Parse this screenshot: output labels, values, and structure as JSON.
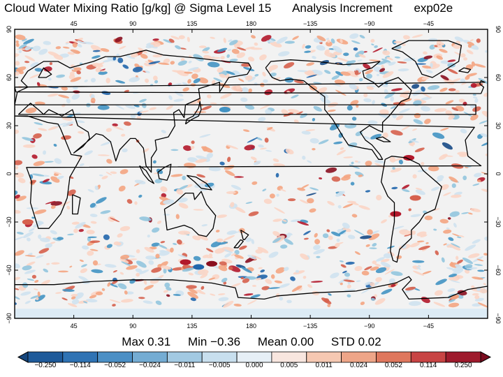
{
  "title": {
    "variable": "Cloud Water Mixing Ratio [g/kg] @ Sigma Level 15",
    "kind": "Analysis Increment",
    "experiment": "exp02e"
  },
  "map": {
    "projection": "cylindrical equidistant",
    "lon_range": [
      0,
      360
    ],
    "lat_range": [
      -90,
      90
    ],
    "lon_ticks": [
      "45",
      "90",
      "135",
      "180",
      "−135",
      "−90",
      "−45"
    ],
    "lat_ticks": [
      "90",
      "60",
      "30",
      "0",
      "−30",
      "−60",
      "−90"
    ],
    "field_colors": {
      "background": "#f2f2f2",
      "positive": "#b2182b",
      "negative": "#2166ac",
      "coast": "#000000"
    }
  },
  "stats": {
    "max": "Max 0.31",
    "min": "Min −0.36",
    "mean": "Mean 0.00",
    "std": "STD 0.02"
  },
  "colorbar": {
    "labels": [
      "−0.250",
      "−0.114",
      "−0.052",
      "−0.024",
      "−0.011",
      "−0.005",
      "0.000",
      "0.005",
      "0.011",
      "0.024",
      "0.052",
      "0.114",
      "0.250"
    ],
    "colors": [
      "#1e5a9a",
      "#2f73b4",
      "#4b8fc5",
      "#74acd3",
      "#a2c9e2",
      "#c8dfee",
      "#e6eff6",
      "#f8e6df",
      "#f6c8b2",
      "#eea588",
      "#df775d",
      "#c84444",
      "#9e1a2c"
    ],
    "under_color": "#15467d",
    "over_color": "#7a0c1f"
  }
}
